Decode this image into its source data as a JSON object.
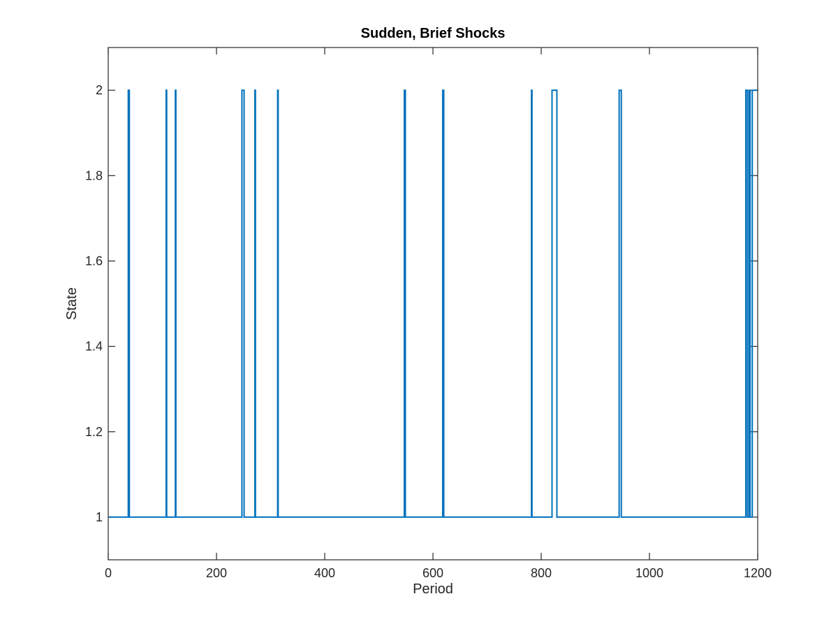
{
  "chart_data": {
    "type": "line",
    "title": "Sudden, Brief Shocks",
    "xlabel": "Period",
    "ylabel": "State",
    "xlim": [
      0,
      1200
    ],
    "ylim": [
      0.9,
      2.1
    ],
    "xticks": [
      0,
      200,
      400,
      600,
      800,
      1000,
      1200
    ],
    "yticks": [
      1,
      1.2,
      1.4,
      1.6,
      1.8,
      2
    ],
    "ytick_labels": [
      "1",
      "1.2",
      "1.4",
      "1.6",
      "1.8",
      "2"
    ],
    "grid": false,
    "line_color": "#0072BD",
    "baseline_state": 1,
    "shock_state": 2,
    "shock_periods": [
      [
        37,
        39
      ],
      [
        107,
        108
      ],
      [
        124,
        125
      ],
      [
        247,
        251
      ],
      [
        271,
        272
      ],
      [
        313,
        314
      ],
      [
        547,
        549
      ],
      [
        618,
        620
      ],
      [
        782,
        783
      ],
      [
        820,
        829
      ],
      [
        944,
        948
      ],
      [
        1178,
        1181
      ],
      [
        1184,
        1186
      ],
      [
        1190,
        1200
      ]
    ]
  }
}
